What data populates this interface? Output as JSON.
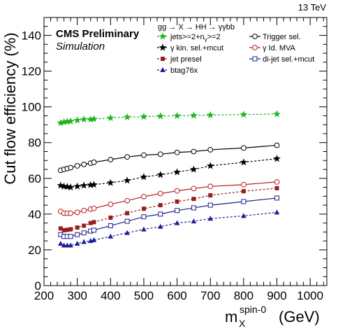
{
  "header": {
    "energy_label": "13 TeV",
    "experiment_label": "CMS Preliminary",
    "sample_label": "Simulation",
    "process_label": "gg → X → HH → γγbb"
  },
  "chart_data": {
    "type": "line",
    "xlabel_main": "m",
    "xlabel_sub": "X",
    "xlabel_sup": "spin-0",
    "xlabel_unit": "(GeV)",
    "ylabel": "Cut flow efficiency (%)",
    "xlim": [
      200,
      1050
    ],
    "ylim": [
      0,
      150
    ],
    "xticks": [
      200,
      300,
      400,
      500,
      600,
      700,
      800,
      900,
      1000
    ],
    "yticks": [
      0,
      20,
      40,
      60,
      80,
      100,
      120,
      140
    ],
    "x": [
      250,
      260,
      270,
      280,
      300,
      320,
      340,
      350,
      400,
      450,
      500,
      550,
      600,
      650,
      700,
      800,
      900
    ],
    "series": [
      {
        "name": "Trigger sel.",
        "color": "#000000",
        "marker": "open-circle",
        "dashed": false,
        "values": [
          64.5,
          65.0,
          65.5,
          66.0,
          67.0,
          67.8,
          68.5,
          69.0,
          70.5,
          72.0,
          73.0,
          73.5,
          74.5,
          75.0,
          76.0,
          77.0,
          78.5
        ]
      },
      {
        "name": "jets>=2+n_{γ}>=2",
        "color": "#1eb41e",
        "marker": "star",
        "dashed": true,
        "values": [
          91.0,
          91.5,
          91.8,
          92.0,
          92.5,
          93.0,
          93.0,
          93.2,
          93.8,
          94.3,
          94.5,
          94.8,
          95.0,
          95.2,
          95.4,
          95.7,
          96.0
        ]
      },
      {
        "name": "γ kin. sel.+mcut",
        "color": "#000000",
        "marker": "star",
        "dashed": true,
        "values": [
          56.0,
          55.5,
          55.3,
          55.0,
          55.5,
          56.0,
          56.3,
          56.5,
          57.5,
          58.8,
          60.8,
          62.0,
          63.5,
          65.0,
          67.0,
          69.0,
          71.0
        ]
      },
      {
        "name": "γ Id. MVA",
        "color": "#b41e1e",
        "marker": "open-circle",
        "dashed": false,
        "values": [
          41.5,
          40.5,
          40.5,
          40.5,
          41.0,
          42.0,
          42.8,
          43.2,
          45.5,
          47.5,
          49.8,
          51.5,
          53.0,
          54.3,
          55.5,
          56.5,
          58.0
        ]
      },
      {
        "name": "jet presel",
        "color": "#961e1e",
        "marker": "filled-square",
        "dashed": true,
        "values": [
          32.0,
          31.0,
          31.2,
          31.5,
          32.5,
          33.5,
          35.0,
          35.5,
          38.0,
          40.5,
          43.0,
          45.0,
          47.0,
          48.5,
          50.5,
          52.8,
          54.5
        ]
      },
      {
        "name": "di-jet sel.+mcut",
        "color": "#1e1e8c",
        "marker": "open-square",
        "dashed": false,
        "values": [
          28.5,
          27.5,
          27.5,
          27.5,
          28.5,
          29.5,
          30.5,
          31.0,
          33.5,
          36.0,
          38.5,
          40.0,
          42.0,
          43.5,
          45.0,
          47.0,
          49.0
        ]
      },
      {
        "name": "btag76x",
        "color": "#1e1e96",
        "marker": "filled-triangle",
        "dashed": true,
        "values": [
          23.5,
          22.5,
          22.5,
          22.5,
          23.5,
          24.5,
          25.0,
          25.5,
          27.5,
          29.5,
          31.5,
          33.0,
          35.0,
          36.0,
          37.5,
          39.0,
          41.0
        ]
      }
    ],
    "legend_columns": [
      [
        "jets>=2+n_{γ}>=2",
        "γ kin. sel.+mcut",
        "jet presel",
        "btag76x"
      ],
      [
        "Trigger sel.",
        "γ Id. MVA",
        "di-jet sel.+mcut"
      ]
    ],
    "legend_placement": "top-right",
    "grid": false
  }
}
